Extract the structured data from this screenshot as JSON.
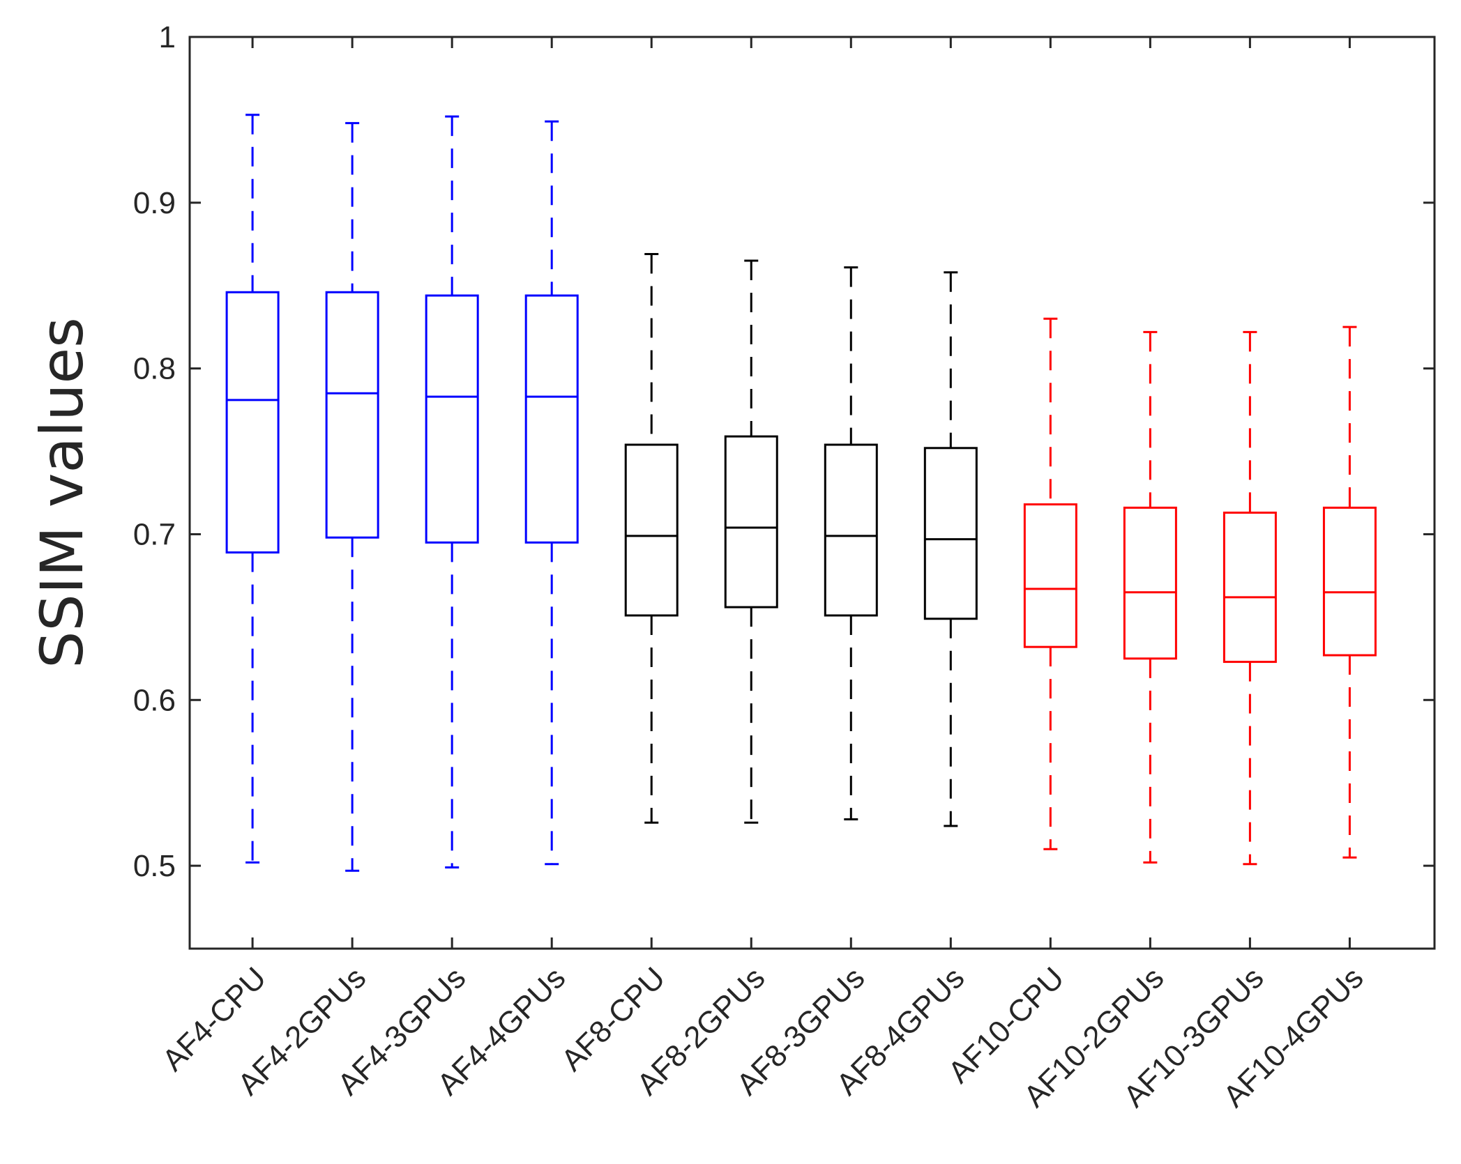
{
  "chart_data": {
    "type": "boxplot",
    "title": "",
    "xlabel": "",
    "ylabel": "SSIM values",
    "ylim": [
      0.45,
      1.0
    ],
    "yticks": [
      0.5,
      0.6,
      0.7,
      0.8,
      0.9,
      1.0
    ],
    "ytick_labels": [
      "0.5",
      "0.6",
      "0.7",
      "0.8",
      "0.9",
      "1"
    ],
    "grid": false,
    "categories": [
      "AF4-CPU",
      "AF4-2GPUs",
      "AF4-3GPUs",
      "AF4-4GPUs",
      "AF8-CPU",
      "AF8-2GPUs",
      "AF8-3GPUs",
      "AF8-4GPUs",
      "AF10-CPU",
      "AF10-2GPUs",
      "AF10-3GPUs",
      "AF10-4GPUs"
    ],
    "colors": [
      "#0000ff",
      "#0000ff",
      "#0000ff",
      "#0000ff",
      "#000000",
      "#000000",
      "#000000",
      "#000000",
      "#ff0000",
      "#ff0000",
      "#ff0000",
      "#ff0000"
    ],
    "boxes": [
      {
        "min": 0.502,
        "q1": 0.689,
        "median": 0.781,
        "q3": 0.846,
        "max": 0.953
      },
      {
        "min": 0.497,
        "q1": 0.698,
        "median": 0.785,
        "q3": 0.846,
        "max": 0.948
      },
      {
        "min": 0.499,
        "q1": 0.695,
        "median": 0.783,
        "q3": 0.844,
        "max": 0.952
      },
      {
        "min": 0.501,
        "q1": 0.695,
        "median": 0.783,
        "q3": 0.844,
        "max": 0.949
      },
      {
        "min": 0.526,
        "q1": 0.651,
        "median": 0.699,
        "q3": 0.754,
        "max": 0.869
      },
      {
        "min": 0.526,
        "q1": 0.656,
        "median": 0.704,
        "q3": 0.759,
        "max": 0.865
      },
      {
        "min": 0.528,
        "q1": 0.651,
        "median": 0.699,
        "q3": 0.754,
        "max": 0.861
      },
      {
        "min": 0.524,
        "q1": 0.649,
        "median": 0.697,
        "q3": 0.752,
        "max": 0.858
      },
      {
        "min": 0.51,
        "q1": 0.632,
        "median": 0.667,
        "q3": 0.718,
        "max": 0.83
      },
      {
        "min": 0.502,
        "q1": 0.625,
        "median": 0.665,
        "q3": 0.716,
        "max": 0.822
      },
      {
        "min": 0.501,
        "q1": 0.623,
        "median": 0.662,
        "q3": 0.713,
        "max": 0.822
      },
      {
        "min": 0.505,
        "q1": 0.627,
        "median": 0.665,
        "q3": 0.716,
        "max": 0.825
      }
    ]
  }
}
